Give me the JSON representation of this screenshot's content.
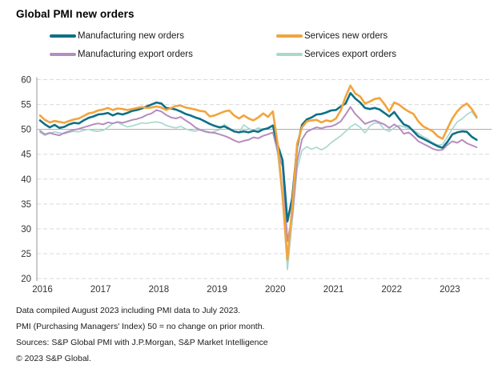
{
  "title": "Global PMI new orders",
  "legend": [
    {
      "label": "Manufacturing new orders",
      "color": "#0e7087"
    },
    {
      "label": "Services new orders",
      "color": "#f2a43c"
    },
    {
      "label": "Manufacturing export orders",
      "color": "#b58dbf"
    },
    {
      "label": "Services export orders",
      "color": "#a9d8cf"
    }
  ],
  "footnotes": [
    "Data compiled August 2023 including PMI data to July 2023.",
    "PMI (Purchasing Managers' Index) 50 = no change on prior month.",
    "Sources: S&P Global PMI with J.P.Morgan, S&P Market Intelligence",
    "© 2023 S&P Global."
  ],
  "axis_colors": {
    "grid_dashed": "#d9d9d9",
    "axis_and_ref": "#a8a8a8",
    "tick_text": "#333333"
  },
  "chart_data": {
    "type": "line",
    "title": "Global PMI new orders",
    "x_unit": "monthly",
    "x_start": "2016-01",
    "x_end": "2023-07",
    "x_tick_labels": [
      "2016",
      "2017",
      "2018",
      "2019",
      "2020",
      "2021",
      "2022",
      "2023"
    ],
    "ylim": [
      20,
      60
    ],
    "y_ticks": [
      20,
      25,
      30,
      35,
      40,
      45,
      50,
      55,
      60
    ],
    "reference_line": 50,
    "grid": "horizontal-dashed",
    "legend_position": "top",
    "series": [
      {
        "name": "Manufacturing new orders",
        "color": "#0e7087",
        "width": 2.6,
        "values": [
          51.8,
          51.0,
          50.4,
          50.9,
          50.3,
          50.5,
          51.0,
          51.3,
          51.2,
          51.8,
          52.3,
          52.6,
          53.0,
          53.1,
          53.3,
          52.8,
          53.2,
          53.0,
          53.3,
          53.7,
          53.9,
          54.2,
          54.6,
          55.0,
          55.4,
          55.2,
          54.3,
          54.2,
          54.0,
          53.6,
          53.1,
          52.8,
          52.4,
          52.1,
          51.6,
          51.1,
          50.7,
          50.4,
          50.6,
          50.1,
          49.6,
          49.4,
          49.6,
          49.4,
          49.7,
          49.5,
          50.0,
          50.2,
          50.8,
          46.8,
          43.8,
          31.5,
          36.2,
          46.5,
          50.9,
          52.0,
          52.4,
          53.0,
          53.1,
          53.4,
          53.8,
          53.9,
          54.6,
          55.2,
          57.3,
          56.2,
          55.4,
          54.3,
          54.1,
          54.3,
          54.0,
          53.3,
          52.6,
          53.5,
          52.2,
          51.0,
          50.6,
          49.6,
          48.6,
          48.1,
          47.6,
          47.1,
          46.6,
          46.3,
          47.5,
          49.0,
          49.4,
          49.6,
          49.5,
          48.5,
          47.9
        ]
      },
      {
        "name": "Services new orders",
        "color": "#f2a43c",
        "width": 2.6,
        "values": [
          52.8,
          51.9,
          51.4,
          51.7,
          51.5,
          51.3,
          51.7,
          52.0,
          52.2,
          52.7,
          53.2,
          53.4,
          53.8,
          54.0,
          54.3,
          53.9,
          54.2,
          54.1,
          53.9,
          54.1,
          54.3,
          54.5,
          54.3,
          54.4,
          54.6,
          54.4,
          53.9,
          54.3,
          54.7,
          54.8,
          54.4,
          54.2,
          54.0,
          53.7,
          53.6,
          52.6,
          52.8,
          53.2,
          53.6,
          53.8,
          52.8,
          52.2,
          52.8,
          52.2,
          51.8,
          52.4,
          53.2,
          52.5,
          53.6,
          47.0,
          36.5,
          23.8,
          34.5,
          47.1,
          50.4,
          51.6,
          51.8,
          51.9,
          51.4,
          51.8,
          51.6,
          52.2,
          53.8,
          56.6,
          58.8,
          57.2,
          56.6,
          55.2,
          55.6,
          56.1,
          56.3,
          55.1,
          53.6,
          55.4,
          55.0,
          54.2,
          53.6,
          53.1,
          51.6,
          50.6,
          50.1,
          49.6,
          48.6,
          48.1,
          50.2,
          52.2,
          53.6,
          54.6,
          55.2,
          54.1,
          52.5
        ]
      },
      {
        "name": "Manufacturing export orders",
        "color": "#b58dbf",
        "width": 2.0,
        "values": [
          49.7,
          49.0,
          49.3,
          49.0,
          48.8,
          49.3,
          49.6,
          49.9,
          50.1,
          50.4,
          50.7,
          51.0,
          51.2,
          51.0,
          51.4,
          51.2,
          51.5,
          51.3,
          51.6,
          51.9,
          52.1,
          52.4,
          52.9,
          53.2,
          53.9,
          53.6,
          52.9,
          52.4,
          52.2,
          52.5,
          51.8,
          51.2,
          50.4,
          49.9,
          49.6,
          49.4,
          49.3,
          49.0,
          48.7,
          48.3,
          47.8,
          47.4,
          47.7,
          47.9,
          48.4,
          48.2,
          48.7,
          49.0,
          49.4,
          45.5,
          42.5,
          27.5,
          32.5,
          43.5,
          48.0,
          49.5,
          50.0,
          50.4,
          50.2,
          50.5,
          50.6,
          51.0,
          51.6,
          53.0,
          54.5,
          53.1,
          52.1,
          51.1,
          51.5,
          51.8,
          51.4,
          51.0,
          50.3,
          51.0,
          50.4,
          49.1,
          49.4,
          48.6,
          47.6,
          47.1,
          46.6,
          46.1,
          45.8,
          45.9,
          46.9,
          47.6,
          47.3,
          47.9,
          47.2,
          46.8,
          46.4
        ]
      },
      {
        "name": "Services export orders",
        "color": "#a9d8cf",
        "width": 1.7,
        "values": [
          49.4,
          48.8,
          49.2,
          49.5,
          49.3,
          49.1,
          49.4,
          49.6,
          49.5,
          49.8,
          50.0,
          49.7,
          49.6,
          49.8,
          50.4,
          51.2,
          51.4,
          50.9,
          50.5,
          50.7,
          51.0,
          51.3,
          51.2,
          51.4,
          51.5,
          51.3,
          50.8,
          50.5,
          50.3,
          50.6,
          50.1,
          49.8,
          49.6,
          49.9,
          49.5,
          49.3,
          49.6,
          49.9,
          51.0,
          50.3,
          49.6,
          49.4,
          50.9,
          50.2,
          49.8,
          50.3,
          50.0,
          50.4,
          50.7,
          45.0,
          36.0,
          21.8,
          31.5,
          42.0,
          45.8,
          46.5,
          46.0,
          46.4,
          45.9,
          46.4,
          47.3,
          48.0,
          48.7,
          49.6,
          50.5,
          51.1,
          50.4,
          49.3,
          50.7,
          51.3,
          51.2,
          50.0,
          49.6,
          50.3,
          50.8,
          50.5,
          50.2,
          49.8,
          49.2,
          48.5,
          48.0,
          47.3,
          46.8,
          47.0,
          48.5,
          50.1,
          51.5,
          52.1,
          53.0,
          53.6,
          52.2
        ]
      }
    ]
  }
}
